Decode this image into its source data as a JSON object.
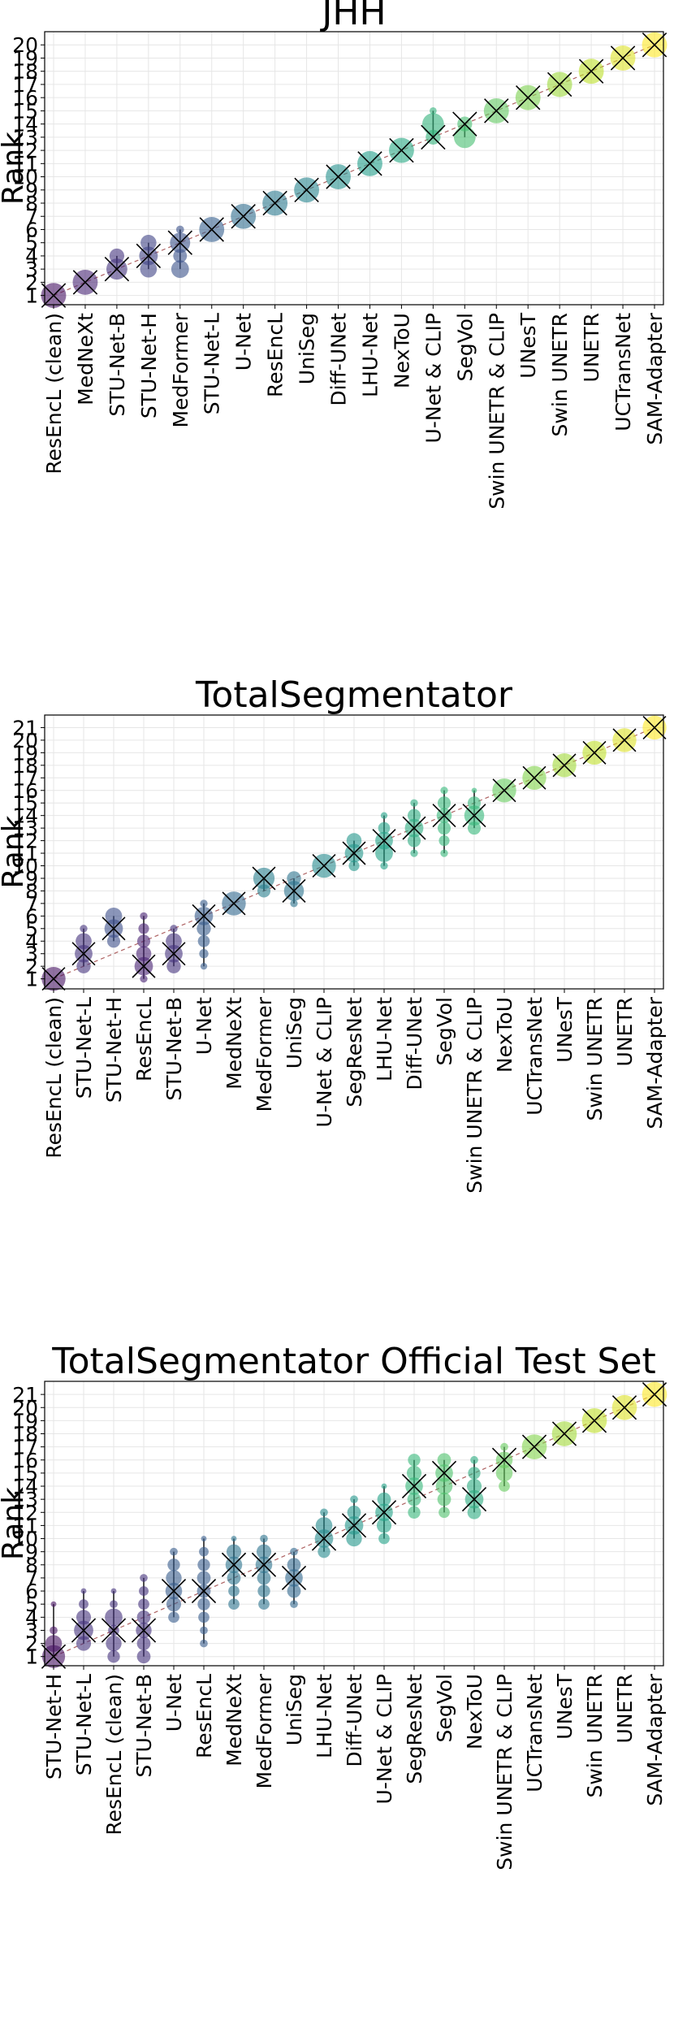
{
  "chart_data": [
    {
      "type": "scatter",
      "title": "JHH",
      "ylabel": "Rank",
      "xlabel": "",
      "ylim": [
        0.3,
        21.0
      ],
      "yticks": [
        1,
        2,
        3,
        4,
        5,
        6,
        7,
        8,
        9,
        10,
        11,
        12,
        13,
        14,
        15,
        16,
        17,
        18,
        19,
        20
      ],
      "grid": true,
      "categories": [
        "ResEncL (clean)",
        "MedNeXt",
        "STU-Net-B",
        "STU-Net-H",
        "MedFormer",
        "STU-Net-L",
        "U-Net",
        "ResEncL",
        "UniSeg",
        "Diff-UNet",
        "LHU-Net",
        "NexToU",
        "U-Net & CLIP",
        "SegVol",
        "Swin UNETR & CLIP",
        "UNesT",
        "Swin UNETR",
        "UNETR",
        "UCTransNet",
        "SAM-Adapter"
      ],
      "median_ranks": [
        1,
        2,
        3,
        4,
        5,
        6,
        7,
        8,
        9,
        10,
        11,
        12,
        13,
        14,
        15,
        16,
        17,
        18,
        19,
        20
      ],
      "rank_distribution": [
        [
          [
            1,
            1.0
          ]
        ],
        [
          [
            2,
            1.0
          ]
        ],
        [
          [
            3,
            0.7
          ],
          [
            4,
            0.35
          ]
        ],
        [
          [
            3,
            0.45
          ],
          [
            4,
            0.55
          ],
          [
            5,
            0.4
          ]
        ],
        [
          [
            3,
            0.5
          ],
          [
            4,
            0.3
          ],
          [
            5,
            0.65
          ],
          [
            6,
            0.1
          ]
        ],
        [
          [
            6,
            1.0
          ]
        ],
        [
          [
            7,
            1.0
          ]
        ],
        [
          [
            8,
            1.0
          ]
        ],
        [
          [
            9,
            1.0
          ]
        ],
        [
          [
            10,
            1.0
          ]
        ],
        [
          [
            11,
            1.0
          ]
        ],
        [
          [
            12,
            1.0
          ]
        ],
        [
          [
            13,
            0.35
          ],
          [
            14,
            0.75
          ],
          [
            15,
            0.08
          ]
        ],
        [
          [
            13,
            0.75
          ],
          [
            14,
            0.35
          ]
        ],
        [
          [
            15,
            1.0
          ]
        ],
        [
          [
            16,
            1.0
          ]
        ],
        [
          [
            17,
            1.0
          ]
        ],
        [
          [
            18,
            1.0
          ]
        ],
        [
          [
            19,
            1.0
          ]
        ],
        [
          [
            20,
            1.0
          ]
        ]
      ]
    },
    {
      "type": "scatter",
      "title": "TotalSegmentator",
      "ylabel": "Rank",
      "xlabel": "",
      "ylim": [
        0.2,
        22.0
      ],
      "yticks": [
        1,
        2,
        3,
        4,
        5,
        6,
        7,
        8,
        9,
        10,
        11,
        12,
        13,
        14,
        15,
        16,
        17,
        18,
        19,
        20,
        21
      ],
      "grid": true,
      "categories": [
        "ResEncL (clean)",
        "STU-Net-L",
        "STU-Net-H",
        "ResEncL",
        "STU-Net-B",
        "U-Net",
        "MedNeXt",
        "MedFormer",
        "UniSeg",
        "U-Net & CLIP",
        "SegResNet",
        "LHU-Net",
        "Diff-UNet",
        "SegVol",
        "Swin UNETR & CLIP",
        "NexToU",
        "UCTransNet",
        "UNesT",
        "Swin UNETR",
        "UNETR",
        "SAM-Adapter"
      ],
      "median_ranks": [
        1,
        3,
        5,
        2,
        3,
        6,
        7,
        9,
        8,
        10,
        11,
        12,
        13,
        14,
        14,
        16,
        17,
        18,
        19,
        20,
        21
      ],
      "rank_distribution": [
        [
          [
            1,
            1.0
          ]
        ],
        [
          [
            2,
            0.35
          ],
          [
            3,
            0.55
          ],
          [
            4,
            0.45
          ],
          [
            5,
            0.1
          ]
        ],
        [
          [
            4,
            0.3
          ],
          [
            5,
            0.6
          ],
          [
            6,
            0.5
          ]
        ],
        [
          [
            1,
            0.1
          ],
          [
            2,
            0.6
          ],
          [
            3,
            0.4
          ],
          [
            4,
            0.3
          ],
          [
            5,
            0.2
          ],
          [
            6,
            0.1
          ]
        ],
        [
          [
            2,
            0.35
          ],
          [
            3,
            0.55
          ],
          [
            4,
            0.45
          ],
          [
            5,
            0.1
          ]
        ],
        [
          [
            2,
            0.08
          ],
          [
            3,
            0.15
          ],
          [
            4,
            0.25
          ],
          [
            5,
            0.35
          ],
          [
            6,
            0.6
          ],
          [
            7,
            0.1
          ]
        ],
        [
          [
            7,
            1.0
          ]
        ],
        [
          [
            8,
            0.3
          ],
          [
            9,
            0.8
          ]
        ],
        [
          [
            7,
            0.1
          ],
          [
            8,
            0.7
          ],
          [
            9,
            0.35
          ]
        ],
        [
          [
            10,
            1.0
          ]
        ],
        [
          [
            10,
            0.2
          ],
          [
            11,
            0.6
          ],
          [
            12,
            0.4
          ]
        ],
        [
          [
            10,
            0.1
          ],
          [
            11,
            0.55
          ],
          [
            12,
            0.55
          ],
          [
            13,
            0.25
          ],
          [
            14,
            0.08
          ]
        ],
        [
          [
            11,
            0.1
          ],
          [
            12,
            0.3
          ],
          [
            13,
            0.6
          ],
          [
            14,
            0.3
          ],
          [
            15,
            0.1
          ]
        ],
        [
          [
            11,
            0.1
          ],
          [
            12,
            0.2
          ],
          [
            13,
            0.3
          ],
          [
            14,
            0.4
          ],
          [
            15,
            0.3
          ],
          [
            16,
            0.1
          ]
        ],
        [
          [
            13,
            0.3
          ],
          [
            14,
            0.7
          ],
          [
            15,
            0.3
          ],
          [
            16,
            0.05
          ]
        ],
        [
          [
            16,
            1.0
          ]
        ],
        [
          [
            17,
            1.0
          ]
        ],
        [
          [
            18,
            1.0
          ]
        ],
        [
          [
            19,
            1.0
          ]
        ],
        [
          [
            20,
            1.0
          ]
        ],
        [
          [
            21,
            1.0
          ]
        ]
      ]
    },
    {
      "type": "scatter",
      "title": "TotalSegmentator Official Test Set",
      "ylabel": "Rank",
      "xlabel": "",
      "ylim": [
        0.3,
        22.0
      ],
      "yticks": [
        1,
        2,
        3,
        4,
        5,
        6,
        7,
        8,
        9,
        10,
        11,
        12,
        13,
        14,
        15,
        16,
        17,
        18,
        19,
        20,
        21
      ],
      "grid": true,
      "categories": [
        "STU-Net-H",
        "STU-Net-L",
        "ResEncL (clean)",
        "STU-Net-B",
        "U-Net",
        "ResEncL",
        "MedNeXt",
        "MedFormer",
        "UniSeg",
        "LHU-Net",
        "Diff-UNet",
        "U-Net & CLIP",
        "SegResNet",
        "SegVol",
        "NexToU",
        "Swin UNETR & CLIP",
        "UCTransNet",
        "UNesT",
        "Swin UNETR",
        "UNETR",
        "SAM-Adapter"
      ],
      "median_ranks": [
        1,
        3,
        3,
        3,
        6,
        6,
        8,
        8,
        7,
        10,
        11,
        12,
        14,
        15,
        13,
        16,
        17,
        18,
        19,
        20,
        21
      ],
      "rank_distribution": [
        [
          [
            1,
            0.85
          ],
          [
            2,
            0.45
          ],
          [
            3,
            0.1
          ],
          [
            5,
            0.05
          ]
        ],
        [
          [
            2,
            0.35
          ],
          [
            3,
            0.6
          ],
          [
            4,
            0.35
          ],
          [
            5,
            0.15
          ],
          [
            6,
            0.05
          ]
        ],
        [
          [
            1,
            0.25
          ],
          [
            2,
            0.4
          ],
          [
            3,
            0.2
          ],
          [
            4,
            0.5
          ],
          [
            5,
            0.1
          ],
          [
            6,
            0.05
          ]
        ],
        [
          [
            1,
            0.3
          ],
          [
            2,
            0.3
          ],
          [
            3,
            0.4
          ],
          [
            4,
            0.3
          ],
          [
            5,
            0.2
          ],
          [
            6,
            0.15
          ],
          [
            7,
            0.1
          ]
        ],
        [
          [
            4,
            0.2
          ],
          [
            5,
            0.35
          ],
          [
            6,
            0.45
          ],
          [
            7,
            0.4
          ],
          [
            8,
            0.25
          ],
          [
            9,
            0.1
          ]
        ],
        [
          [
            2,
            0.1
          ],
          [
            3,
            0.1
          ],
          [
            4,
            0.2
          ],
          [
            5,
            0.25
          ],
          [
            6,
            0.3
          ],
          [
            7,
            0.3
          ],
          [
            8,
            0.25
          ],
          [
            9,
            0.15
          ],
          [
            10,
            0.05
          ]
        ],
        [
          [
            5,
            0.2
          ],
          [
            6,
            0.2
          ],
          [
            7,
            0.3
          ],
          [
            8,
            0.45
          ],
          [
            9,
            0.35
          ],
          [
            10,
            0.05
          ]
        ],
        [
          [
            5,
            0.2
          ],
          [
            6,
            0.25
          ],
          [
            7,
            0.3
          ],
          [
            8,
            0.45
          ],
          [
            9,
            0.35
          ],
          [
            10,
            0.1
          ]
        ],
        [
          [
            5,
            0.1
          ],
          [
            6,
            0.3
          ],
          [
            7,
            0.5
          ],
          [
            8,
            0.3
          ],
          [
            9,
            0.1
          ]
        ],
        [
          [
            9,
            0.25
          ],
          [
            10,
            0.55
          ],
          [
            11,
            0.45
          ],
          [
            12,
            0.1
          ]
        ],
        [
          [
            10,
            0.4
          ],
          [
            11,
            0.55
          ],
          [
            12,
            0.3
          ],
          [
            13,
            0.1
          ]
        ],
        [
          [
            10,
            0.2
          ],
          [
            11,
            0.35
          ],
          [
            12,
            0.5
          ],
          [
            13,
            0.3
          ],
          [
            14,
            0.05
          ]
        ],
        [
          [
            12,
            0.25
          ],
          [
            13,
            0.3
          ],
          [
            14,
            0.5
          ],
          [
            15,
            0.35
          ],
          [
            16,
            0.25
          ]
        ],
        [
          [
            12,
            0.2
          ],
          [
            13,
            0.3
          ],
          [
            14,
            0.45
          ],
          [
            15,
            0.5
          ],
          [
            16,
            0.3
          ]
        ],
        [
          [
            12,
            0.3
          ],
          [
            13,
            0.55
          ],
          [
            14,
            0.35
          ],
          [
            15,
            0.25
          ],
          [
            16,
            0.1
          ]
        ],
        [
          [
            14,
            0.2
          ],
          [
            15,
            0.45
          ],
          [
            16,
            0.45
          ],
          [
            17,
            0.1
          ]
        ],
        [
          [
            17,
            1.0
          ]
        ],
        [
          [
            18,
            1.0
          ]
        ],
        [
          [
            19,
            1.0
          ]
        ],
        [
          [
            20,
            1.0
          ]
        ],
        [
          [
            21,
            1.0
          ]
        ]
      ]
    }
  ]
}
